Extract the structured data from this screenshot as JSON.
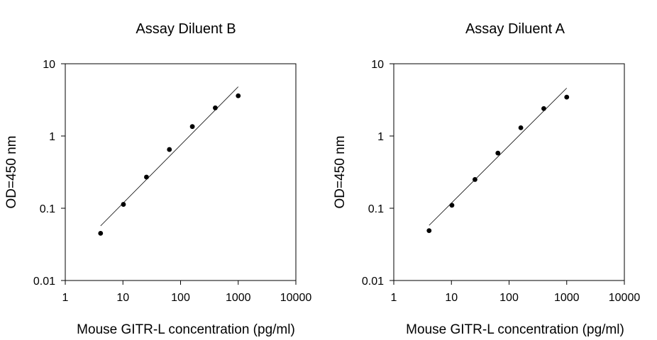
{
  "chart_data": [
    {
      "type": "scatter",
      "title": "Assay Diluent B",
      "xlabel": "Mouse GITR-L concentration (pg/ml)",
      "ylabel": "OD=450 nm",
      "xscale": "log",
      "yscale": "log",
      "xlim": [
        1,
        10000
      ],
      "ylim": [
        0.01,
        10
      ],
      "xticks": [
        "1",
        "10",
        "100",
        "1000",
        "10000"
      ],
      "yticks": [
        "10",
        "1",
        "0.1",
        "0.01"
      ],
      "grid": false,
      "legend": "none",
      "series": [
        {
          "x": [
            4.1,
            10.2,
            25.6,
            64,
            160,
            400,
            1000
          ],
          "y": [
            0.045,
            0.113,
            0.27,
            0.65,
            1.35,
            2.45,
            3.6
          ]
        }
      ],
      "fit_line": {
        "x": [
          4.1,
          1000
        ],
        "y": [
          0.057,
          4.8
        ]
      }
    },
    {
      "type": "scatter",
      "title": "Assay Diluent A",
      "xlabel": "Mouse GITR-L concentration (pg/ml)",
      "ylabel": "OD=450 nm",
      "xscale": "log",
      "yscale": "log",
      "xlim": [
        1,
        10000
      ],
      "ylim": [
        0.01,
        10
      ],
      "xticks": [
        "1",
        "10",
        "100",
        "1000",
        "10000"
      ],
      "yticks": [
        "10",
        "1",
        "0.1",
        "0.01"
      ],
      "grid": false,
      "legend": "none",
      "series": [
        {
          "x": [
            4.1,
            10.2,
            25.6,
            64,
            160,
            400,
            1000
          ],
          "y": [
            0.049,
            0.11,
            0.25,
            0.58,
            1.3,
            2.4,
            3.45
          ]
        }
      ],
      "fit_line": {
        "x": [
          4.1,
          1000
        ],
        "y": [
          0.058,
          4.6
        ]
      }
    }
  ]
}
